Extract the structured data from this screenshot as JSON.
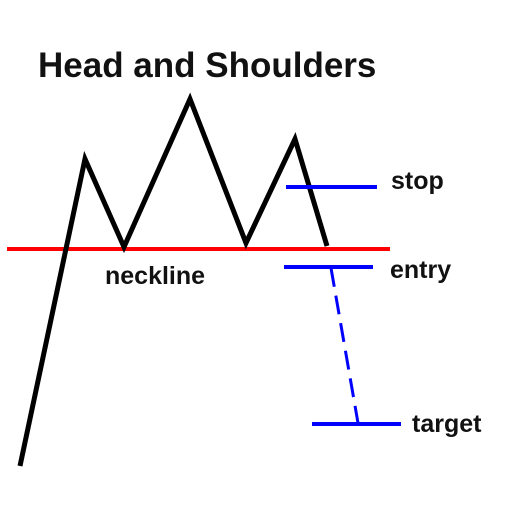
{
  "title": "Head and Shoulders",
  "labels": {
    "neckline": "neckline",
    "stop": "stop",
    "entry": "entry",
    "target": "target"
  },
  "colors": {
    "price_line": "#000000",
    "neckline": "#ff0000",
    "levels": "#0000ff",
    "text": "#111111",
    "background": "#ffffff"
  }
}
